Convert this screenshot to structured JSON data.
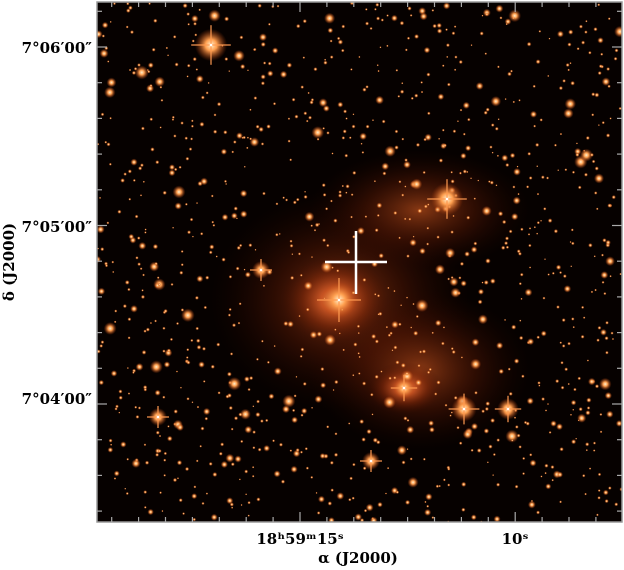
{
  "axes": {
    "y_tick_labels": [
      "7°06′00″",
      "7°05′00″",
      "7°04′00″"
    ],
    "x_tick_labels": [
      "18ʰ59ᵐ15ˢ",
      "10ˢ"
    ],
    "x_label": "α (J2000)",
    "y_label": "δ (J2000)"
  }
}
